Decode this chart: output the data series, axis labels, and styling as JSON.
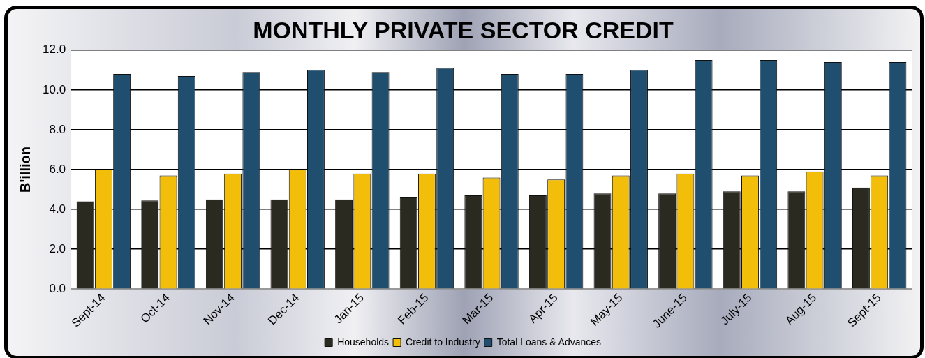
{
  "chart_data": {
    "type": "bar",
    "title": "MONTHLY PRIVATE SECTOR CREDIT",
    "ylabel": "B'illion",
    "categories": [
      "Sept-14",
      "Oct-14",
      "Nov-14",
      "Dec-14",
      "Jan-15",
      "Feb-15",
      "Mar-15",
      "Apr-15",
      "May-15",
      "June-15",
      "July-15",
      "Aug-15",
      "Sept-15"
    ],
    "series": [
      {
        "name": "Households",
        "color": "#2b2a20",
        "values": [
          4.4,
          4.45,
          4.5,
          4.5,
          4.5,
          4.6,
          4.7,
          4.7,
          4.8,
          4.8,
          4.9,
          4.9,
          5.1
        ]
      },
      {
        "name": "Credit to Industry",
        "color": "#f2be0a",
        "values": [
          6.0,
          5.7,
          5.8,
          6.0,
          5.8,
          5.8,
          5.6,
          5.5,
          5.7,
          5.8,
          5.7,
          5.9,
          5.7
        ]
      },
      {
        "name": "Total Loans & Advances",
        "color": "#1f4e6e",
        "values": [
          10.8,
          10.7,
          10.9,
          11.0,
          10.9,
          11.1,
          10.8,
          10.8,
          11.0,
          11.5,
          11.5,
          11.4,
          11.4
        ]
      }
    ],
    "ylim": [
      0,
      12
    ],
    "yticks": [
      {
        "value": 0,
        "label": "0.0"
      },
      {
        "value": 2,
        "label": "2.0"
      },
      {
        "value": 4,
        "label": "4.0"
      },
      {
        "value": 6,
        "label": "6.0"
      },
      {
        "value": 8,
        "label": "8.0"
      },
      {
        "value": 10,
        "label": "10.0"
      },
      {
        "value": 12,
        "label": "12.0"
      }
    ],
    "grid": "y",
    "legend": "bottom"
  }
}
